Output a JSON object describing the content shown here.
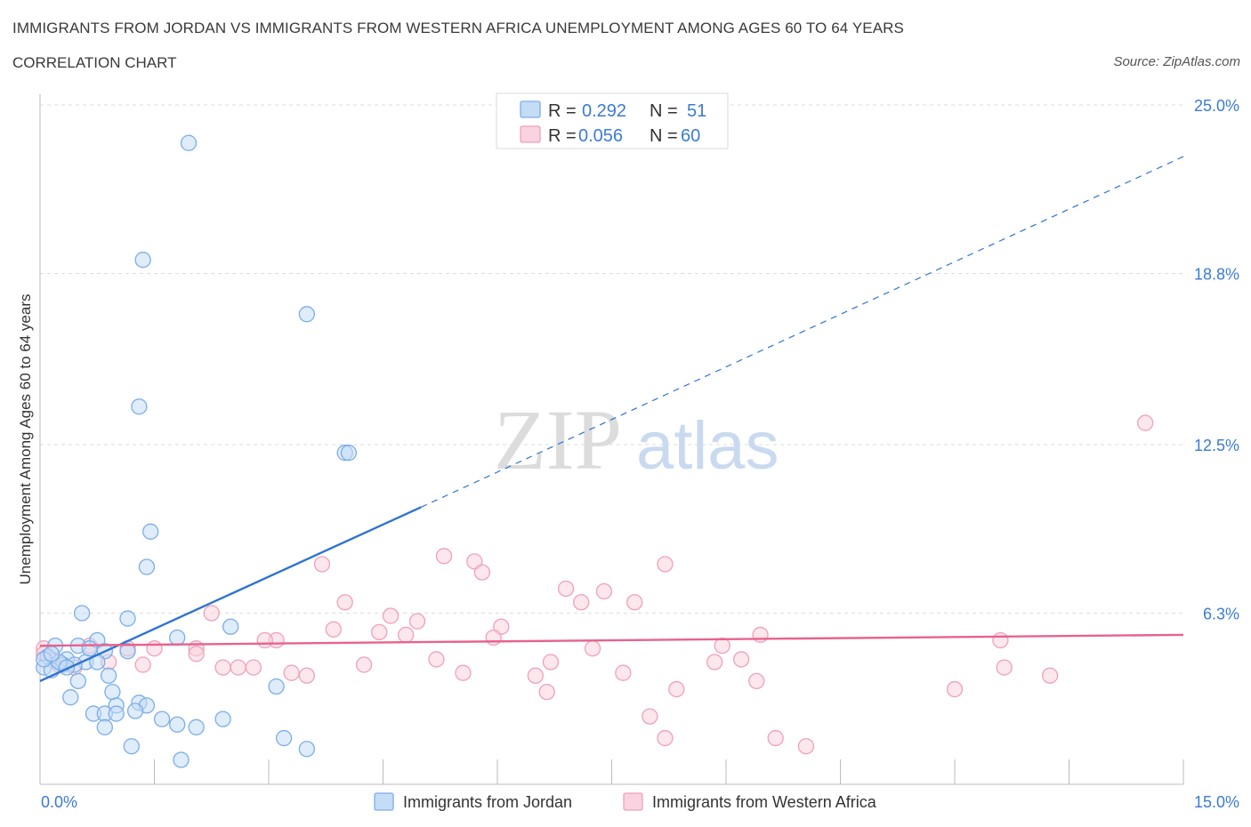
{
  "title": "IMMIGRANTS FROM JORDAN VS IMMIGRANTS FROM WESTERN AFRICA UNEMPLOYMENT AMONG AGES 60 TO 64 YEARS",
  "subtitle": "CORRELATION CHART",
  "source": "Source: ZipAtlas.com",
  "watermark": {
    "zip": "ZIP",
    "atlas": "atlas"
  },
  "colors": {
    "jordan": "#7aaee8",
    "jordan_fill": "#c5dcf6",
    "jordan_line": "#2f74d0",
    "wafrica": "#f0a0b8",
    "wafrica_fill": "#f9d3df",
    "wafrica_line": "#e8628c",
    "accent_text": "#3a7bd5",
    "grid": "#dddddd"
  },
  "legend": {
    "jordan": {
      "r_label": "R = ",
      "r_value": "0.292",
      "n_label": "N = ",
      "n_value": "51"
    },
    "wafrica": {
      "r_label": "R = ",
      "r_value": "0.056",
      "n_label": "N = ",
      "n_value": "60"
    }
  },
  "chart_data": {
    "type": "scatter",
    "title": "IMMIGRANTS FROM JORDAN VS IMMIGRANTS FROM WESTERN AFRICA UNEMPLOYMENT AMONG AGES 60 TO 64 YEARS",
    "xlabel": "",
    "ylabel": "Unemployment Among Ages 60 to 64 years",
    "xlim": [
      0,
      15
    ],
    "ylim": [
      0,
      25
    ],
    "x_tick_labels": [
      "0.0%",
      "15.0%"
    ],
    "y_ticks": [
      6.3,
      12.5,
      18.8,
      25.0
    ],
    "y_tick_labels": [
      "6.3%",
      "12.5%",
      "18.8%",
      "25.0%"
    ],
    "grid": true,
    "legend_position": "top-center",
    "series": [
      {
        "name": "Immigrants from Jordan",
        "r": 0.292,
        "n": 51,
        "trend": {
          "x": [
            0,
            5.0
          ],
          "y": [
            3.8,
            10.2
          ],
          "extended_to": [
            15,
            23.1
          ]
        },
        "points": [
          [
            1.95,
            23.6
          ],
          [
            1.35,
            19.3
          ],
          [
            3.5,
            17.3
          ],
          [
            1.3,
            13.9
          ],
          [
            4.0,
            12.2
          ],
          [
            4.05,
            12.2
          ],
          [
            1.45,
            9.3
          ],
          [
            1.4,
            8.0
          ],
          [
            0.55,
            6.3
          ],
          [
            1.15,
            6.1
          ],
          [
            2.5,
            5.8
          ],
          [
            1.8,
            5.4
          ],
          [
            0.75,
            5.3
          ],
          [
            0.2,
            5.1
          ],
          [
            0.5,
            5.1
          ],
          [
            0.85,
            4.9
          ],
          [
            1.15,
            4.9
          ],
          [
            0.1,
            4.7
          ],
          [
            0.35,
            4.6
          ],
          [
            0.6,
            4.5
          ],
          [
            0.75,
            4.5
          ],
          [
            0.3,
            4.4
          ],
          [
            0.05,
            4.3
          ],
          [
            0.15,
            4.2
          ],
          [
            0.9,
            4.0
          ],
          [
            0.5,
            3.8
          ],
          [
            3.1,
            3.6
          ],
          [
            0.95,
            3.4
          ],
          [
            0.4,
            3.2
          ],
          [
            1.3,
            3.0
          ],
          [
            1.4,
            2.9
          ],
          [
            1.0,
            2.9
          ],
          [
            0.7,
            2.6
          ],
          [
            0.85,
            2.6
          ],
          [
            1.0,
            2.6
          ],
          [
            1.25,
            2.7
          ],
          [
            1.6,
            2.4
          ],
          [
            2.4,
            2.4
          ],
          [
            1.8,
            2.2
          ],
          [
            2.05,
            2.1
          ],
          [
            0.85,
            2.1
          ],
          [
            3.2,
            1.7
          ],
          [
            1.2,
            1.4
          ],
          [
            3.5,
            1.3
          ],
          [
            1.85,
            0.9
          ],
          [
            0.05,
            4.6
          ],
          [
            0.25,
            4.5
          ],
          [
            0.45,
            4.4
          ],
          [
            0.15,
            4.8
          ],
          [
            0.65,
            5.0
          ],
          [
            0.35,
            4.3
          ]
        ]
      },
      {
        "name": "Immigrants from Western Africa",
        "r": 0.056,
        "n": 60,
        "trend": {
          "x": [
            0,
            15
          ],
          "y": [
            5.1,
            5.5
          ]
        },
        "points": [
          [
            14.5,
            13.3
          ],
          [
            5.3,
            8.4
          ],
          [
            5.7,
            8.2
          ],
          [
            5.8,
            7.8
          ],
          [
            3.7,
            8.1
          ],
          [
            8.2,
            8.1
          ],
          [
            6.9,
            7.2
          ],
          [
            7.4,
            7.1
          ],
          [
            7.1,
            6.7
          ],
          [
            7.8,
            6.7
          ],
          [
            4.0,
            6.7
          ],
          [
            2.25,
            6.3
          ],
          [
            4.6,
            6.2
          ],
          [
            4.95,
            6.0
          ],
          [
            6.05,
            5.8
          ],
          [
            3.85,
            5.7
          ],
          [
            4.45,
            5.6
          ],
          [
            4.8,
            5.5
          ],
          [
            9.45,
            5.5
          ],
          [
            5.95,
            5.4
          ],
          [
            3.1,
            5.3
          ],
          [
            2.95,
            5.3
          ],
          [
            1.5,
            5.0
          ],
          [
            2.05,
            5.0
          ],
          [
            2.05,
            4.8
          ],
          [
            7.25,
            5.0
          ],
          [
            8.95,
            5.1
          ],
          [
            12.6,
            5.3
          ],
          [
            1.15,
            5.0
          ],
          [
            0.65,
            5.1
          ],
          [
            0.05,
            5.0
          ],
          [
            5.2,
            4.6
          ],
          [
            6.7,
            4.5
          ],
          [
            8.85,
            4.5
          ],
          [
            9.2,
            4.6
          ],
          [
            4.25,
            4.4
          ],
          [
            1.35,
            4.4
          ],
          [
            2.4,
            4.3
          ],
          [
            2.6,
            4.3
          ],
          [
            2.8,
            4.3
          ],
          [
            3.3,
            4.1
          ],
          [
            3.5,
            4.0
          ],
          [
            5.55,
            4.1
          ],
          [
            6.5,
            4.0
          ],
          [
            7.65,
            4.1
          ],
          [
            9.4,
            3.8
          ],
          [
            12.65,
            4.3
          ],
          [
            13.25,
            4.0
          ],
          [
            6.65,
            3.4
          ],
          [
            8.35,
            3.5
          ],
          [
            12.0,
            3.5
          ],
          [
            8.0,
            2.5
          ],
          [
            8.2,
            1.7
          ],
          [
            9.65,
            1.7
          ],
          [
            10.05,
            1.4
          ],
          [
            0.25,
            4.4
          ],
          [
            0.45,
            4.3
          ],
          [
            0.9,
            4.5
          ],
          [
            0.15,
            4.6
          ],
          [
            0.05,
            4.8
          ]
        ]
      }
    ]
  },
  "bottom_legend": {
    "jordan": "Immigrants from Jordan",
    "wafrica": "Immigrants from Western Africa"
  }
}
